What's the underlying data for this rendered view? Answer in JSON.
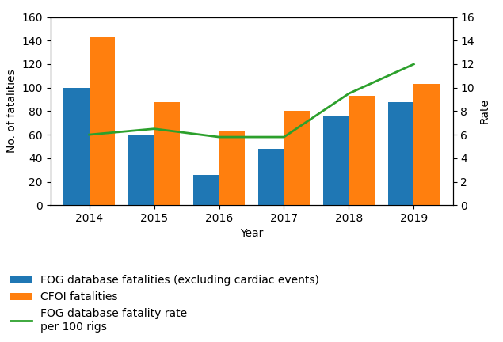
{
  "chart_data": {
    "type": "bar",
    "categories": [
      "2014",
      "2015",
      "2016",
      "2017",
      "2018",
      "2019"
    ],
    "xlabel": "Year",
    "ylabel": "No. of fatalities",
    "y2label": "Rate",
    "series": [
      {
        "name": "FOG database fatalities (excluding cardiac events)",
        "values": [
          100,
          60,
          26,
          48,
          76,
          88
        ]
      },
      {
        "name": "CFOI fatalities",
        "values": [
          143,
          88,
          63,
          80,
          93,
          103
        ]
      },
      {
        "name": "FOG database fatality rate\nper 100 rigs",
        "type": "line",
        "axis": "y2",
        "values": [
          6.0,
          6.5,
          5.8,
          5.8,
          9.5,
          12.0
        ]
      }
    ],
    "ylim": [
      0,
      160
    ],
    "yticks": [
      0,
      20,
      40,
      60,
      80,
      100,
      120,
      140,
      160
    ],
    "y2lim": [
      0,
      16
    ],
    "y2ticks": [
      0,
      2,
      4,
      6,
      8,
      10,
      12,
      14,
      16
    ],
    "grid": false,
    "legend": "lower left"
  }
}
